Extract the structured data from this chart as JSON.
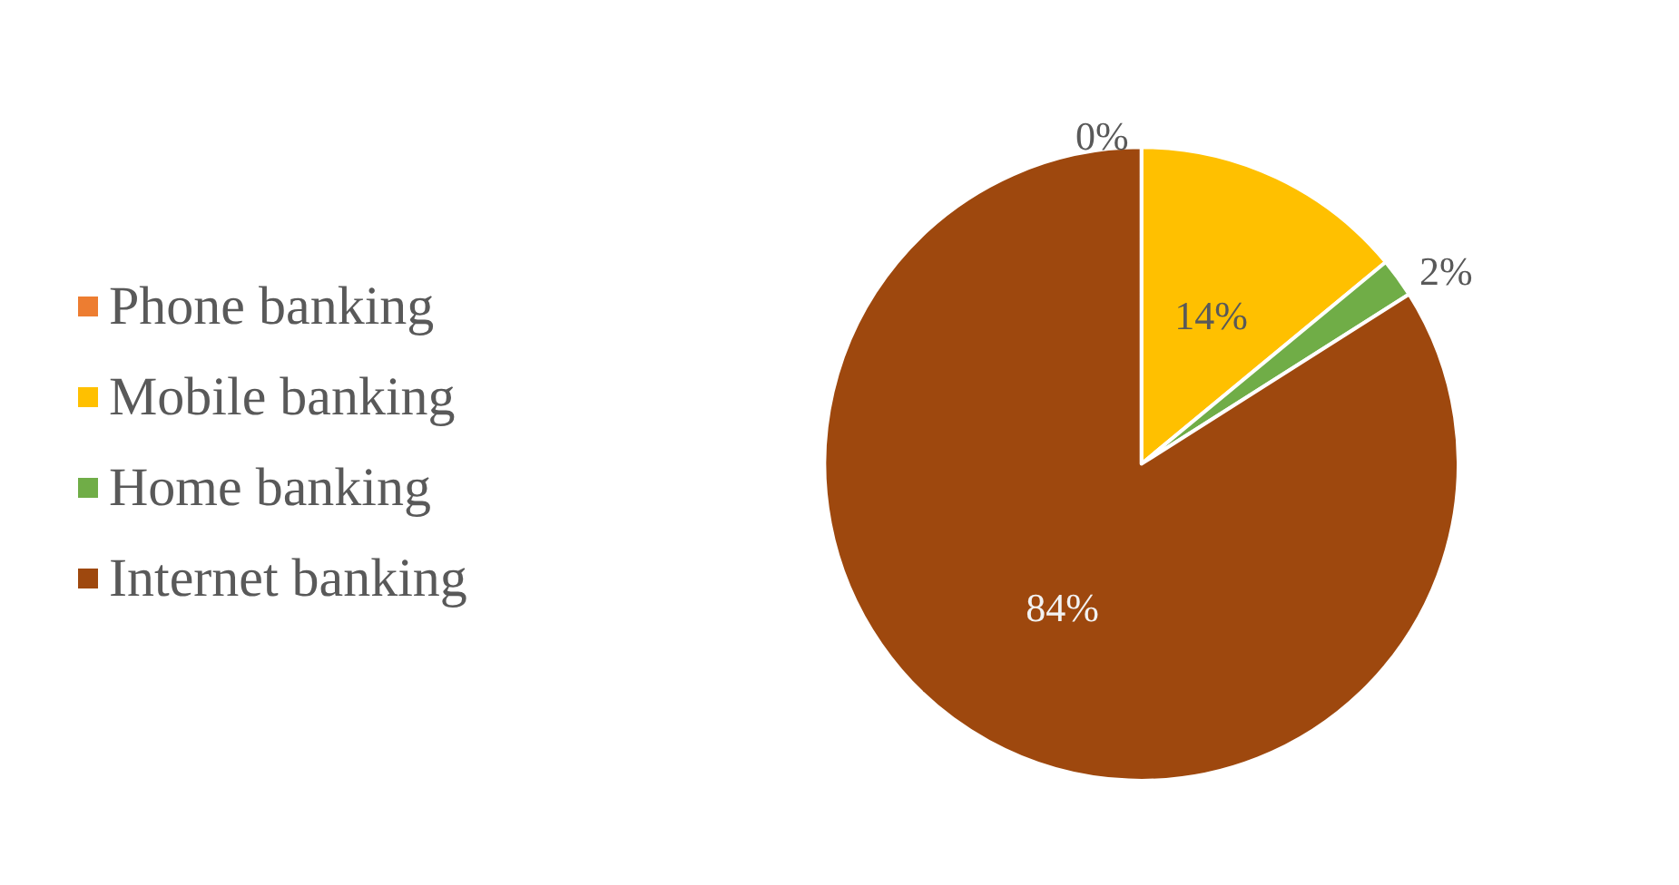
{
  "chart_data": {
    "type": "pie",
    "categories": [
      "Phone banking",
      "Mobile banking",
      "Home banking",
      "Internet banking"
    ],
    "values": [
      0,
      14,
      2,
      84
    ],
    "colors": [
      "#ed7d31",
      "#ffc000",
      "#70ad47",
      "#9e480e"
    ],
    "value_labels": [
      "0%",
      "14%",
      "2%",
      "84%"
    ],
    "legend": "left"
  }
}
